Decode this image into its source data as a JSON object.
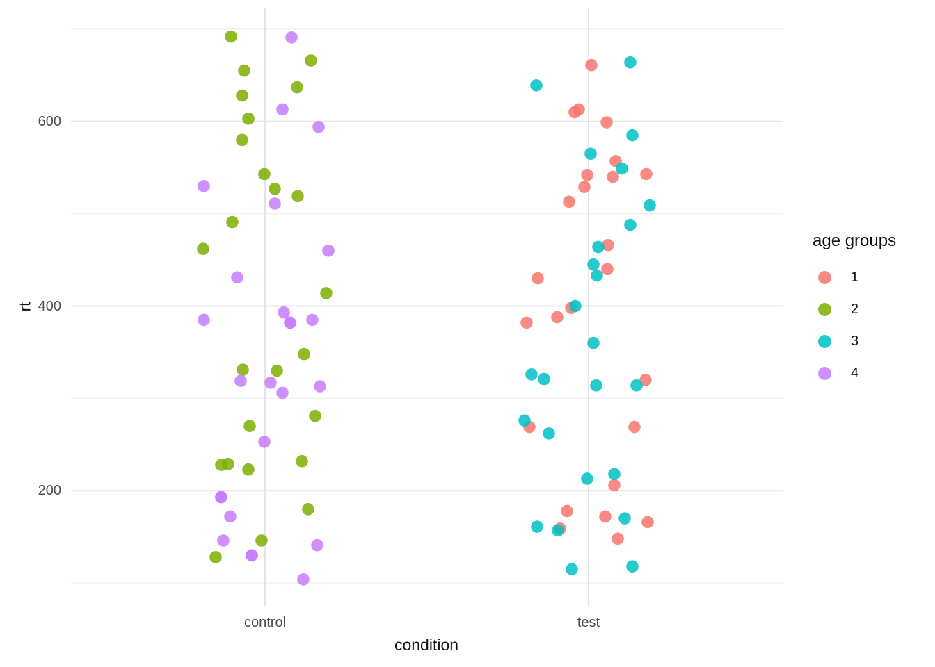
{
  "chart_data": {
    "type": "scatter",
    "title": "",
    "xlabel": "condition",
    "ylabel": "rt",
    "x_categories": [
      "control",
      "test"
    ],
    "y_ticks": [
      200,
      400,
      600
    ],
    "y_minor_gridlines": [
      100,
      300,
      500,
      700
    ],
    "ylim": [
      75,
      722
    ],
    "grid": "on",
    "background_color": "#ffffff",
    "major_grid_color": "#e4e4e4",
    "minor_grid_color": "#efefef",
    "tick_label_color": "#4d4d4d",
    "axis_title_color": "#111111",
    "point_alpha": 0.85,
    "point_radius": 8.8,
    "legend": {
      "title": "age groups",
      "position": "right",
      "entries": [
        {
          "label": "1",
          "color": "#F8766D"
        },
        {
          "label": "2",
          "color": "#7CAE00"
        },
        {
          "label": "3",
          "color": "#00BFC4"
        },
        {
          "label": "4",
          "color": "#C77CFF"
        }
      ]
    },
    "series": [
      {
        "name": "2",
        "group": "age group 2",
        "condition": "control",
        "color": "#7CAE00",
        "points": [
          {
            "dx": -49,
            "rt": 692
          },
          {
            "dx": 66,
            "rt": 666
          },
          {
            "dx": -30,
            "rt": 655
          },
          {
            "dx": 46,
            "rt": 637
          },
          {
            "dx": -33,
            "rt": 628
          },
          {
            "dx": -24,
            "rt": 603
          },
          {
            "dx": -33,
            "rt": 580
          },
          {
            "dx": -1,
            "rt": 543
          },
          {
            "dx": 14,
            "rt": 527
          },
          {
            "dx": 47,
            "rt": 519
          },
          {
            "dx": -47,
            "rt": 491
          },
          {
            "dx": -89,
            "rt": 462
          },
          {
            "dx": 88,
            "rt": 414
          },
          {
            "dx": 56,
            "rt": 348
          },
          {
            "dx": -32,
            "rt": 331
          },
          {
            "dx": 17,
            "rt": 330
          },
          {
            "dx": 72,
            "rt": 281
          },
          {
            "dx": -22,
            "rt": 270
          },
          {
            "dx": 53,
            "rt": 232
          },
          {
            "dx": -53,
            "rt": 229
          },
          {
            "dx": -63,
            "rt": 228
          },
          {
            "dx": -24,
            "rt": 223
          },
          {
            "dx": 62,
            "rt": 180
          },
          {
            "dx": -5,
            "rt": 146
          },
          {
            "dx": -71,
            "rt": 128
          }
        ]
      },
      {
        "name": "4",
        "group": "age group 4",
        "condition": "control",
        "color": "#C77CFF",
        "points": [
          {
            "dx": 38,
            "rt": 691
          },
          {
            "dx": 25,
            "rt": 613
          },
          {
            "dx": 77,
            "rt": 594
          },
          {
            "dx": -88,
            "rt": 530
          },
          {
            "dx": 14,
            "rt": 511
          },
          {
            "dx": 91,
            "rt": 460
          },
          {
            "dx": -40,
            "rt": 431
          },
          {
            "dx": 27,
            "rt": 393
          },
          {
            "dx": -88,
            "rt": 385
          },
          {
            "dx": 68,
            "rt": 385
          },
          {
            "dx": 36,
            "rt": 382
          },
          {
            "dx": 36,
            "rt": 382
          },
          {
            "dx": -35,
            "rt": 319
          },
          {
            "dx": 8,
            "rt": 317
          },
          {
            "dx": 79,
            "rt": 313
          },
          {
            "dx": 25,
            "rt": 306
          },
          {
            "dx": -1,
            "rt": 253
          },
          {
            "dx": -63,
            "rt": 193
          },
          {
            "dx": -63,
            "rt": 193
          },
          {
            "dx": -50,
            "rt": 172
          },
          {
            "dx": -60,
            "rt": 146
          },
          {
            "dx": 75,
            "rt": 141
          },
          {
            "dx": -19,
            "rt": 130
          },
          {
            "dx": -19,
            "rt": 130
          },
          {
            "dx": 55,
            "rt": 104
          }
        ]
      },
      {
        "name": "1",
        "group": "age group 1",
        "condition": "test",
        "color": "#F8766D",
        "points": [
          {
            "dx": 4,
            "rt": 661
          },
          {
            "dx": -14,
            "rt": 613
          },
          {
            "dx": -20,
            "rt": 610
          },
          {
            "dx": 26,
            "rt": 599
          },
          {
            "dx": 39,
            "rt": 557
          },
          {
            "dx": 83,
            "rt": 543
          },
          {
            "dx": -2,
            "rt": 542
          },
          {
            "dx": 35,
            "rt": 540
          },
          {
            "dx": -6,
            "rt": 529
          },
          {
            "dx": -28,
            "rt": 513
          },
          {
            "dx": 28,
            "rt": 466
          },
          {
            "dx": 27,
            "rt": 440
          },
          {
            "dx": -73,
            "rt": 430
          },
          {
            "dx": -25,
            "rt": 398
          },
          {
            "dx": -45,
            "rt": 388
          },
          {
            "dx": -89,
            "rt": 382
          },
          {
            "dx": 82,
            "rt": 320
          },
          {
            "dx": -85,
            "rt": 269
          },
          {
            "dx": 66,
            "rt": 269
          },
          {
            "dx": 37,
            "rt": 206
          },
          {
            "dx": -31,
            "rt": 178
          },
          {
            "dx": 24,
            "rt": 172
          },
          {
            "dx": 85,
            "rt": 166
          },
          {
            "dx": -41,
            "rt": 159
          },
          {
            "dx": 42,
            "rt": 148
          }
        ]
      },
      {
        "name": "3",
        "group": "age group 3",
        "condition": "test",
        "color": "#00BFC4",
        "points": [
          {
            "dx": 60,
            "rt": 664
          },
          {
            "dx": -75,
            "rt": 639
          },
          {
            "dx": 63,
            "rt": 585
          },
          {
            "dx": 3,
            "rt": 565
          },
          {
            "dx": 48,
            "rt": 549
          },
          {
            "dx": 88,
            "rt": 509
          },
          {
            "dx": 60,
            "rt": 488
          },
          {
            "dx": 14,
            "rt": 464
          },
          {
            "dx": 7,
            "rt": 445
          },
          {
            "dx": 12,
            "rt": 433
          },
          {
            "dx": -19,
            "rt": 400
          },
          {
            "dx": 7,
            "rt": 360
          },
          {
            "dx": -82,
            "rt": 326
          },
          {
            "dx": -64,
            "rt": 321
          },
          {
            "dx": 11,
            "rt": 314
          },
          {
            "dx": 69,
            "rt": 314
          },
          {
            "dx": -92,
            "rt": 276
          },
          {
            "dx": -57,
            "rt": 262
          },
          {
            "dx": 37,
            "rt": 218
          },
          {
            "dx": -2,
            "rt": 213
          },
          {
            "dx": 52,
            "rt": 170
          },
          {
            "dx": -74,
            "rt": 161
          },
          {
            "dx": -44,
            "rt": 157
          },
          {
            "dx": 63,
            "rt": 118
          },
          {
            "dx": -24,
            "rt": 115
          }
        ]
      }
    ]
  }
}
